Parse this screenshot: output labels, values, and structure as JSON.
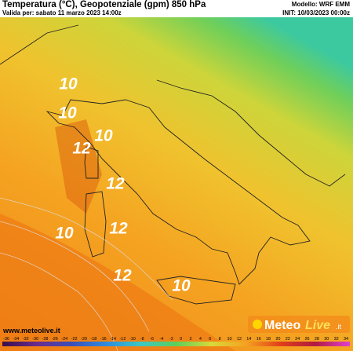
{
  "header": {
    "title": "Temperatura (°C), Geopotenziale (gpm) 850 hPa",
    "valid": "Valida per: sabato 11 marzo 2023 14:00z",
    "model": "Modello: WRF EMM",
    "init": "INIT: 10/03/2023 00:00z"
  },
  "map": {
    "labels": [
      10,
      10,
      12,
      10,
      12,
      10,
      12,
      12,
      10
    ]
  },
  "footer": {
    "website": "www.meteolive.it",
    "logo": [
      "Meteo",
      "Live",
      ".it"
    ]
  },
  "colorbar": {
    "ticks": [
      -36,
      -34,
      -32,
      -30,
      -28,
      -26,
      -24,
      -22,
      -20,
      -18,
      -16,
      -14,
      -12,
      -10,
      -8,
      -6,
      -4,
      -2,
      0,
      2,
      4,
      6,
      8,
      10,
      12,
      14,
      16,
      18,
      20,
      22,
      24,
      26,
      28,
      30,
      32,
      34
    ]
  }
}
